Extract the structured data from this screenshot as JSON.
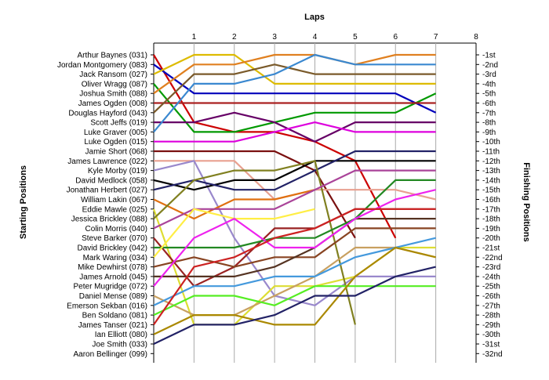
{
  "chart_data": {
    "type": "line",
    "title": "",
    "xlabel": "Laps",
    "ylabel_left": "Starting Positions",
    "ylabel_right": "Finishing Positions",
    "laps": [
      1,
      2,
      3,
      4,
      5,
      6,
      7,
      8
    ],
    "xlim": [
      0,
      8
    ],
    "ylim": [
      1,
      32
    ],
    "y_inverted": true,
    "grid_vertical": true,
    "grid_horizontal": false,
    "legend": "none",
    "finishing_labels": [
      "1st",
      "2nd",
      "3rd",
      "4th",
      "5th",
      "6th",
      "7th",
      "8th",
      "9th",
      "10th",
      "11th",
      "12th",
      "13th",
      "14th",
      "15th",
      "16th",
      "17th",
      "18th",
      "19th",
      "20th",
      "21st",
      "22nd",
      "23rd",
      "24th",
      "25th",
      "26th",
      "27th",
      "28th",
      "29th",
      "30th",
      "31st",
      "32nd"
    ],
    "series": [
      {
        "name": "Arthur Baynes (031)",
        "color": "#cc0000",
        "positions": [
          1,
          8,
          9,
          9,
          10,
          12,
          20
        ]
      },
      {
        "name": "Jordan Montgomery (083)",
        "color": "#0000bb",
        "positions": [
          2,
          5,
          5,
          5,
          5,
          5,
          5,
          7
        ]
      },
      {
        "name": "Jack Ransom (027)",
        "color": "#ddbb00",
        "positions": [
          3,
          1,
          1,
          4,
          4,
          4,
          4,
          4
        ]
      },
      {
        "name": "Oliver Wragg (087)",
        "color": "#009900",
        "positions": [
          4,
          9,
          9,
          8,
          7,
          7,
          7,
          5
        ]
      },
      {
        "name": "Joshua Smith (088)",
        "color": "#e08020",
        "positions": [
          5,
          2,
          2,
          1,
          1,
          2,
          1,
          1
        ]
      },
      {
        "name": "James Ogden (008)",
        "color": "#aa2222",
        "positions": [
          6,
          6,
          6,
          6,
          6,
          6,
          6,
          6
        ]
      },
      {
        "name": "Douglas Hayford (043)",
        "color": "#7a5a2a",
        "positions": [
          7,
          3,
          3,
          2,
          3,
          3,
          3,
          3
        ]
      },
      {
        "name": "Scott Jeffs (019)",
        "color": "#660066",
        "positions": [
          8,
          8,
          7,
          8,
          10,
          8,
          8,
          8
        ]
      },
      {
        "name": "Luke Graver (005)",
        "color": "#3a88d0",
        "positions": [
          9,
          4,
          4,
          3,
          1,
          2,
          2,
          2
        ]
      },
      {
        "name": "Luke Ogden (015)",
        "color": "#dd00dd",
        "positions": [
          10,
          10,
          10,
          9,
          8,
          9,
          9,
          9
        ]
      },
      {
        "name": "Jamie Short (068)",
        "color": "#7a1010",
        "positions": [
          11,
          11,
          11,
          11,
          13,
          20
        ]
      },
      {
        "name": "James Lawrence (022)",
        "color": "#e8a090",
        "positions": [
          12,
          12,
          12,
          16,
          15,
          15,
          15,
          16
        ]
      },
      {
        "name": "Kyle Morby (019)",
        "color": "#9988cc",
        "positions": [
          13,
          12,
          20,
          26,
          27,
          24,
          24,
          24
        ]
      },
      {
        "name": "David Medlock (058)",
        "color": "#000000",
        "positions": [
          14,
          15,
          14,
          14,
          12,
          12,
          12,
          12
        ]
      },
      {
        "name": "Jonathan Herbert (027)",
        "color": "#222266",
        "positions": [
          15,
          14,
          15,
          15,
          13,
          11,
          11,
          11
        ]
      },
      {
        "name": "William Lakin (067)",
        "color": "#e07010",
        "positions": [
          16,
          18,
          16,
          16,
          15
        ]
      },
      {
        "name": "Eddie Mawle (025)",
        "color": "#dddd33",
        "positions": [
          17,
          29,
          29,
          25,
          25,
          24,
          21,
          21
        ]
      },
      {
        "name": "Jessica Brickley (088)",
        "color": "#808020",
        "positions": [
          18,
          14,
          13,
          13,
          12,
          29
        ]
      },
      {
        "name": "Colin Morris (040)",
        "color": "#aa4499",
        "positions": [
          19,
          17,
          17,
          17,
          15,
          13,
          13,
          13
        ]
      },
      {
        "name": "Steve Barker (070)",
        "color": "#992222",
        "positions": [
          20,
          25,
          23,
          19,
          19,
          17,
          17,
          17
        ]
      },
      {
        "name": "David Brickley (042)",
        "color": "#228822",
        "positions": [
          21,
          21,
          21,
          20,
          20,
          18,
          14,
          14
        ]
      },
      {
        "name": "Mark Waring (034)",
        "color": "#ffee44",
        "positions": [
          22,
          17,
          18,
          18,
          17
        ]
      },
      {
        "name": "Mike Dewhirst (078)",
        "color": "#884422",
        "positions": [
          23,
          22,
          23,
          22,
          22,
          19,
          19,
          19
        ]
      },
      {
        "name": "James Arnold (045)",
        "color": "#553322",
        "positions": [
          24,
          24,
          24,
          23,
          21,
          18,
          18,
          18
        ]
      },
      {
        "name": "Peter Mugridge (072)",
        "color": "#ee22ee",
        "positions": [
          25,
          20,
          18,
          21,
          21,
          18,
          16,
          15
        ]
      },
      {
        "name": "Daniel Mense (089)",
        "color": "#c8a060",
        "positions": [
          26,
          28,
          28,
          26,
          24,
          21,
          21,
          22
        ]
      },
      {
        "name": "Emerson Sekban (016)",
        "color": "#4499dd",
        "positions": [
          27,
          25,
          25,
          24,
          24,
          22,
          21,
          20
        ]
      },
      {
        "name": "Ben Soldano (081)",
        "color": "#55ee22",
        "positions": [
          28,
          26,
          26,
          27,
          25,
          25,
          25,
          25
        ]
      },
      {
        "name": "James Tanser (021)",
        "color": "#cc2222",
        "positions": [
          29,
          23,
          22,
          20,
          19,
          17,
          17,
          17
        ]
      },
      {
        "name": "Ian Elliott (080)",
        "color": "#aa8800",
        "positions": [
          30,
          28,
          28,
          29,
          29,
          24,
          21,
          22
        ]
      },
      {
        "name": "Joe Smith (033)",
        "color": "#222266",
        "positions": [
          31,
          29,
          29,
          28,
          26,
          26,
          24,
          23
        ]
      },
      {
        "name": "Aaron Bellinger (099)",
        "color": "#777777",
        "positions": []
      }
    ]
  }
}
